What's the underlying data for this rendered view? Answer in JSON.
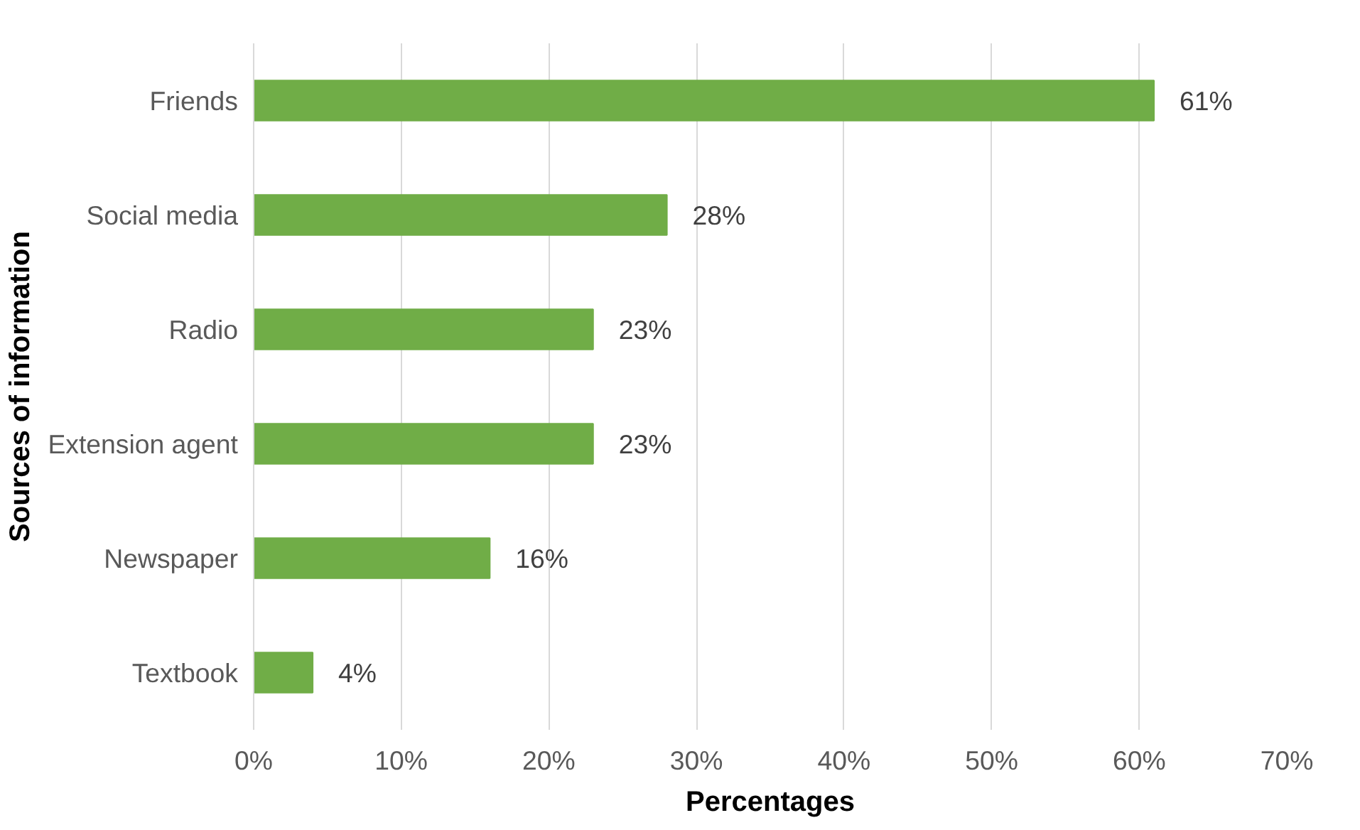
{
  "chart_data": {
    "type": "bar",
    "orientation": "horizontal",
    "xlabel": "Percentages",
    "ylabel": "Sources of information",
    "categories": [
      "Friends",
      "Social media",
      "Radio",
      "Extension agent",
      "Newspaper",
      "Textbook"
    ],
    "values": [
      61,
      28,
      23,
      23,
      16,
      4
    ],
    "value_labels": [
      "61%",
      "28%",
      "23%",
      "23%",
      "16%",
      "4%"
    ],
    "color": "#70ad47",
    "xlim": [
      0,
      70
    ],
    "xticks": [
      {
        "value": 0,
        "label": "0%"
      },
      {
        "value": 10,
        "label": "10%"
      },
      {
        "value": 20,
        "label": "20%"
      },
      {
        "value": 30,
        "label": "30%"
      },
      {
        "value": 40,
        "label": "40%"
      },
      {
        "value": 50,
        "label": "50%"
      },
      {
        "value": 60,
        "label": "60%"
      },
      {
        "value": 70,
        "label": "70%"
      }
    ],
    "grid": "x"
  }
}
